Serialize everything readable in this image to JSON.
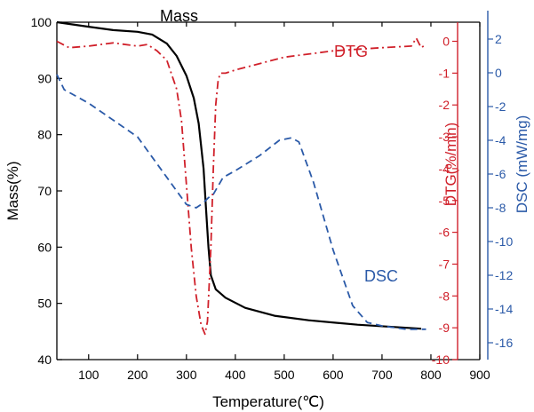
{
  "chart_data": {
    "type": "line",
    "xlabel": "Temperature(℃)",
    "ylabel_left": "Mass(%)",
    "ylabel_right_inner": "DTG(%/min)",
    "ylabel_right_outer": "DSC (mW/mg)",
    "xlim": [
      35,
      900
    ],
    "xticks": [
      100,
      200,
      300,
      400,
      500,
      600,
      700,
      800,
      900
    ],
    "y_mass_lim": [
      40,
      100
    ],
    "y_mass_ticks": [
      40,
      50,
      60,
      70,
      80,
      90,
      100
    ],
    "y_dtg_lim": [
      -10,
      0.6
    ],
    "y_dtg_ticks": [
      0,
      -1,
      -2,
      -3,
      -4,
      -5,
      -6,
      -7,
      -8,
      -9,
      -10
    ],
    "y_dsc_lim": [
      -17,
      3
    ],
    "y_dsc_ticks": [
      2,
      0,
      -2,
      -4,
      -6,
      -8,
      -10,
      -12,
      -14,
      -16
    ],
    "colors": {
      "mass": "#000000",
      "dtg": "#d0202a",
      "dsc": "#2b5aa8",
      "dtg_axis": "#d0202a",
      "dsc_axis": "#2b5aa8"
    },
    "series": [
      {
        "name": "Mass",
        "axis": "mass",
        "style": "solid",
        "x": [
          35,
          100,
          150,
          200,
          230,
          260,
          280,
          300,
          315,
          325,
          335,
          340,
          345,
          350,
          360,
          380,
          420,
          480,
          550,
          650,
          780
        ],
        "y": [
          100,
          99.2,
          98.6,
          98.3,
          97.8,
          96.2,
          94.0,
          90.5,
          86.5,
          82,
          74,
          67,
          60,
          55,
          52.5,
          51,
          49.2,
          47.8,
          47,
          46.2,
          45.5
        ]
      },
      {
        "name": "DTG",
        "axis": "dtg",
        "style": "dashdot",
        "x": [
          35,
          60,
          100,
          150,
          200,
          220,
          240,
          260,
          280,
          290,
          300,
          310,
          320,
          330,
          338,
          343,
          350,
          355,
          360,
          365,
          370,
          380,
          400,
          450,
          500,
          600,
          700,
          760,
          770,
          780,
          790
        ],
        "y": [
          0,
          -0.2,
          -0.15,
          -0.05,
          -0.15,
          -0.1,
          -0.3,
          -0.6,
          -1.5,
          -2.5,
          -4.5,
          -6.5,
          -8.0,
          -8.9,
          -9.2,
          -8.8,
          -6.5,
          -4.0,
          -2.0,
          -1.2,
          -1.0,
          -1.0,
          -0.9,
          -0.7,
          -0.5,
          -0.3,
          -0.2,
          -0.15,
          0.1,
          -0.2,
          -0.1
        ]
      },
      {
        "name": "DSC",
        "axis": "dsc",
        "style": "dashed",
        "x": [
          35,
          50,
          100,
          200,
          300,
          320,
          335,
          345,
          355,
          375,
          400,
          450,
          490,
          515,
          530,
          560,
          600,
          640,
          670,
          700,
          750,
          790
        ],
        "y": [
          -0.1,
          -1.0,
          -1.8,
          -3.8,
          -7.8,
          -8.0,
          -7.7,
          -7.4,
          -7.2,
          -6.2,
          -5.8,
          -4.9,
          -4.0,
          -3.85,
          -4.1,
          -6.5,
          -10.5,
          -13.8,
          -14.8,
          -15.0,
          -15.2,
          -15.2
        ]
      }
    ]
  }
}
